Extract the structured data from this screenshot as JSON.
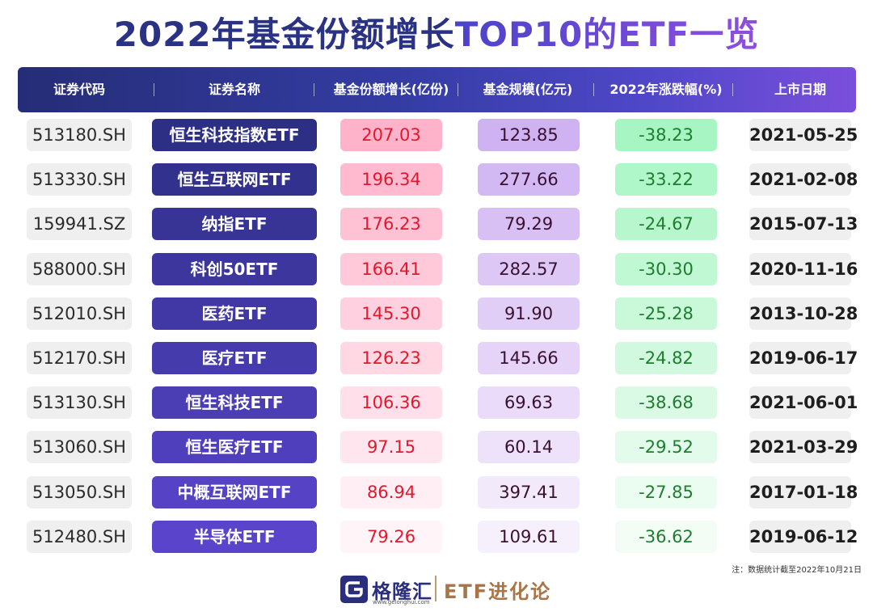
{
  "title_part1": "2022年基金份额增长",
  "title_part2": "TOP10的ETF一览",
  "chart_data": {
    "type": "table",
    "title": "2022年基金份额增长TOP10的ETF一览",
    "columns": [
      "证券代码",
      "证券名称",
      "基金份额增长(亿份)",
      "基金规模(亿元)",
      "2022年涨跌幅(%)",
      "上市日期"
    ],
    "rows": [
      [
        "513180.SH",
        "恒生科技指数ETF",
        "207.03",
        "123.85",
        "-38.23",
        "2021-05-25"
      ],
      [
        "513330.SH",
        "恒生互联网ETF",
        "196.34",
        "277.66",
        "-33.22",
        "2021-02-08"
      ],
      [
        "159941.SZ",
        "纳指ETF",
        "176.23",
        "79.29",
        "-24.67",
        "2015-07-13"
      ],
      [
        "588000.SH",
        "科创50ETF",
        "166.41",
        "282.57",
        "-30.30",
        "2020-11-16"
      ],
      [
        "512010.SH",
        "医药ETF",
        "145.30",
        "91.90",
        "-25.28",
        "2013-10-28"
      ],
      [
        "512170.SH",
        "医疗ETF",
        "126.23",
        "145.66",
        "-24.82",
        "2019-06-17"
      ],
      [
        "513130.SH",
        "恒生科技ETF",
        "106.36",
        "69.63",
        "-38.68",
        "2021-06-01"
      ],
      [
        "513060.SH",
        "恒生医疗ETF",
        "97.15",
        "60.14",
        "-29.52",
        "2021-03-29"
      ],
      [
        "513050.SH",
        "中概互联网ETF",
        "86.94",
        "397.41",
        "-27.85",
        "2017-01-18"
      ],
      [
        "512480.SH",
        "半导体ETF",
        "79.26",
        "109.61",
        "-36.62",
        "2019-06-12"
      ]
    ]
  },
  "note": "注：数据统计截至2022年10月21日",
  "brand": {
    "logo_text": "格隆汇",
    "logo_url": "www.gelonghui.com",
    "column_name": "ETF进化论"
  },
  "colors": {
    "title_dark": "#2a3284",
    "title_purple": "#7a4fdc",
    "name_fill_start": "#2d2f85",
    "name_fill_end": "#5a44cc",
    "growth_fill_start": "#ffb3cb",
    "growth_fill_end": "#fff5f8",
    "scale_fill_start": "#cfb2f2",
    "scale_fill_end": "#f6f0fc",
    "change_fill_start": "#a7f5c2",
    "change_fill_end": "#f3fdf6"
  }
}
